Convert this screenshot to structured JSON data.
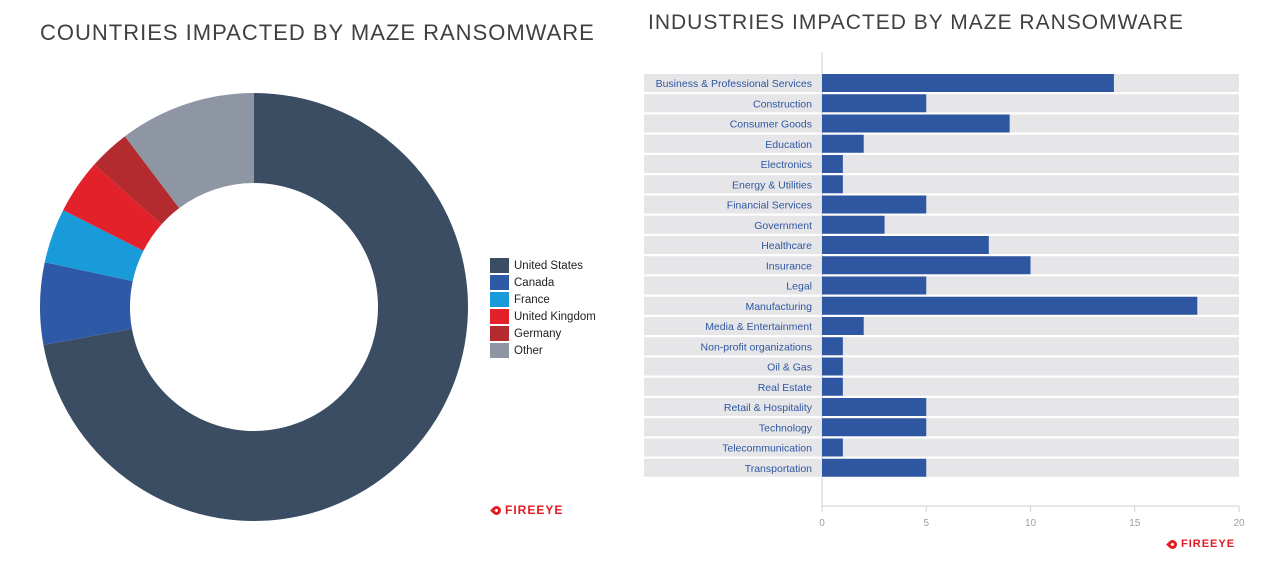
{
  "chart_data": [
    {
      "type": "pie",
      "title": "COUNTRIES IMPACTED BY MAZE RANSOMWARE",
      "donut": true,
      "legend_position": "right",
      "categories": [
        "United States",
        "Canada",
        "France",
        "United Kingdom",
        "Germany",
        "Other"
      ],
      "values": [
        70,
        6,
        4,
        4,
        3,
        10
      ],
      "colors": [
        "#3b4d63",
        "#2e59a6",
        "#1a9bd9",
        "#e3212b",
        "#b32a2f",
        "#8f96a3"
      ]
    },
    {
      "type": "bar",
      "orientation": "horizontal",
      "title": "INDUSTRIES IMPACTED BY MAZE RANSOMWARE",
      "categories": [
        "Business & Professional Services",
        "Construction",
        "Consumer Goods",
        "Education",
        "Electronics",
        "Energy & Utilities",
        "Financial Services",
        "Government",
        "Healthcare",
        "Insurance",
        "Legal",
        "Manufacturing",
        "Media & Entertainment",
        "Non-profit organizations",
        "Oil & Gas",
        "Real Estate",
        "Retail & Hospitality",
        "Technology",
        "Telecommunication",
        "Transportation"
      ],
      "values": [
        14,
        5,
        9,
        2,
        1,
        1,
        5,
        3,
        8,
        10,
        5,
        18,
        2,
        1,
        1,
        1,
        5,
        5,
        1,
        5
      ],
      "xlim": [
        0,
        20
      ],
      "xticks": [
        0,
        5,
        10,
        15,
        20
      ],
      "bar_color": "#2e56a1",
      "row_color": "#e6e6e8",
      "label_color": "#2e56a1"
    }
  ],
  "logos": {
    "left": "FIREEYE",
    "right": "FIREEYE"
  }
}
